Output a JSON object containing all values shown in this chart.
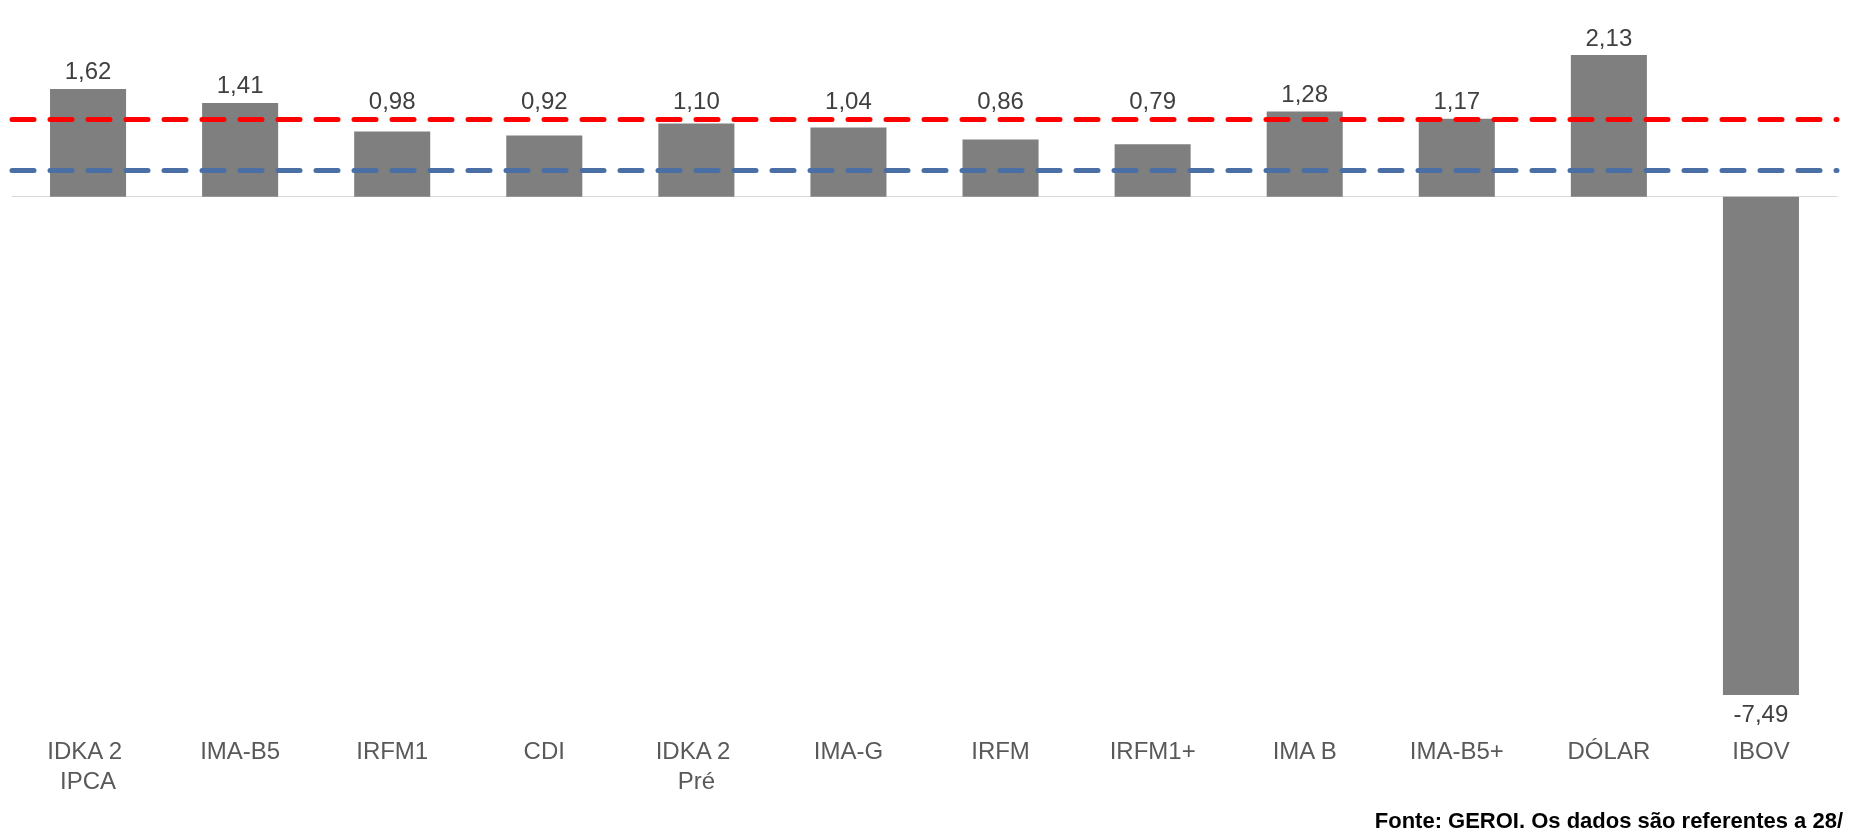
{
  "chart_data": {
    "type": "bar",
    "categories": [
      "IDKA 2 IPCA",
      "IMA-B5",
      "IRFM1",
      "CDI",
      "IDKA 2 Pré",
      "IMA-G",
      "IRFM",
      "IRFM1+",
      "IMA B",
      "IMA-B5+",
      "DÓLAR",
      "IBOV"
    ],
    "values": [
      1.62,
      1.41,
      0.98,
      0.92,
      1.1,
      1.04,
      0.86,
      0.79,
      1.28,
      1.17,
      2.13,
      -7.49
    ],
    "value_labels": [
      "1,62",
      "1,41",
      "0,98",
      "0,92",
      "1,10",
      "1,04",
      "0,86",
      "0,79",
      "1,28",
      "1,17",
      "2,13",
      "-7,49"
    ],
    "color": "#7f7f7f",
    "ref_lines": [
      {
        "axis": "y",
        "value": 1.17,
        "color": "#ff0000",
        "line_style": "dashed"
      },
      {
        "axis": "y",
        "value": 0.4,
        "color": "#4a6fa5",
        "line_style": "dashed"
      }
    ],
    "annotations": [
      "Fonte: GEROI. Os dados são referentes a 28/"
    ],
    "grid": false
  }
}
